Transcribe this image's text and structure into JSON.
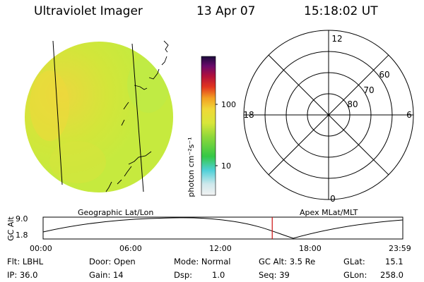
{
  "header": {
    "instrument": "Ultraviolet Imager",
    "date": "13 Apr 07",
    "time": "15:18:02 UT"
  },
  "colorbar": {
    "unit_label": "photon cm⁻²s⁻¹",
    "tick_100": "100",
    "tick_10": "10"
  },
  "polar_plot": {
    "mlt_top": "12",
    "mlt_left": "18",
    "mlt_right": "6",
    "mlt_bottom": "0",
    "lat_60": "60",
    "lat_70": "70",
    "lat_80": "80"
  },
  "altitude_panel": {
    "left_label": "Geographic Lat/Lon",
    "right_label": "Apex MLat/MLT",
    "y_axis_label": "GC Alt",
    "y_top": "9.0",
    "y_bottom": "1.8",
    "x_ticks": [
      "00:00",
      "06:00",
      "12:00",
      "18:00",
      "23:59"
    ],
    "current_time_fraction": 0.637
  },
  "status": {
    "flt": "Flt: LBHL",
    "ip": "IP: 36.0",
    "door": "Door: Open",
    "gain": "Gain: 14",
    "mode": "Mode: Normal",
    "dsp_label": "Dsp:",
    "dsp_value": "1.0",
    "gc_alt": "GC Alt: 3.5 Re",
    "seq": "Seq: 39",
    "glat_label": "GLat:",
    "glat_value": "15.1",
    "glon_label": "GLon:",
    "glon_value": "258.0"
  },
  "colors": {
    "earth_disk": "#c8e83a",
    "earth_hot": "#e9df3c",
    "marker_line": "#cc1111"
  }
}
